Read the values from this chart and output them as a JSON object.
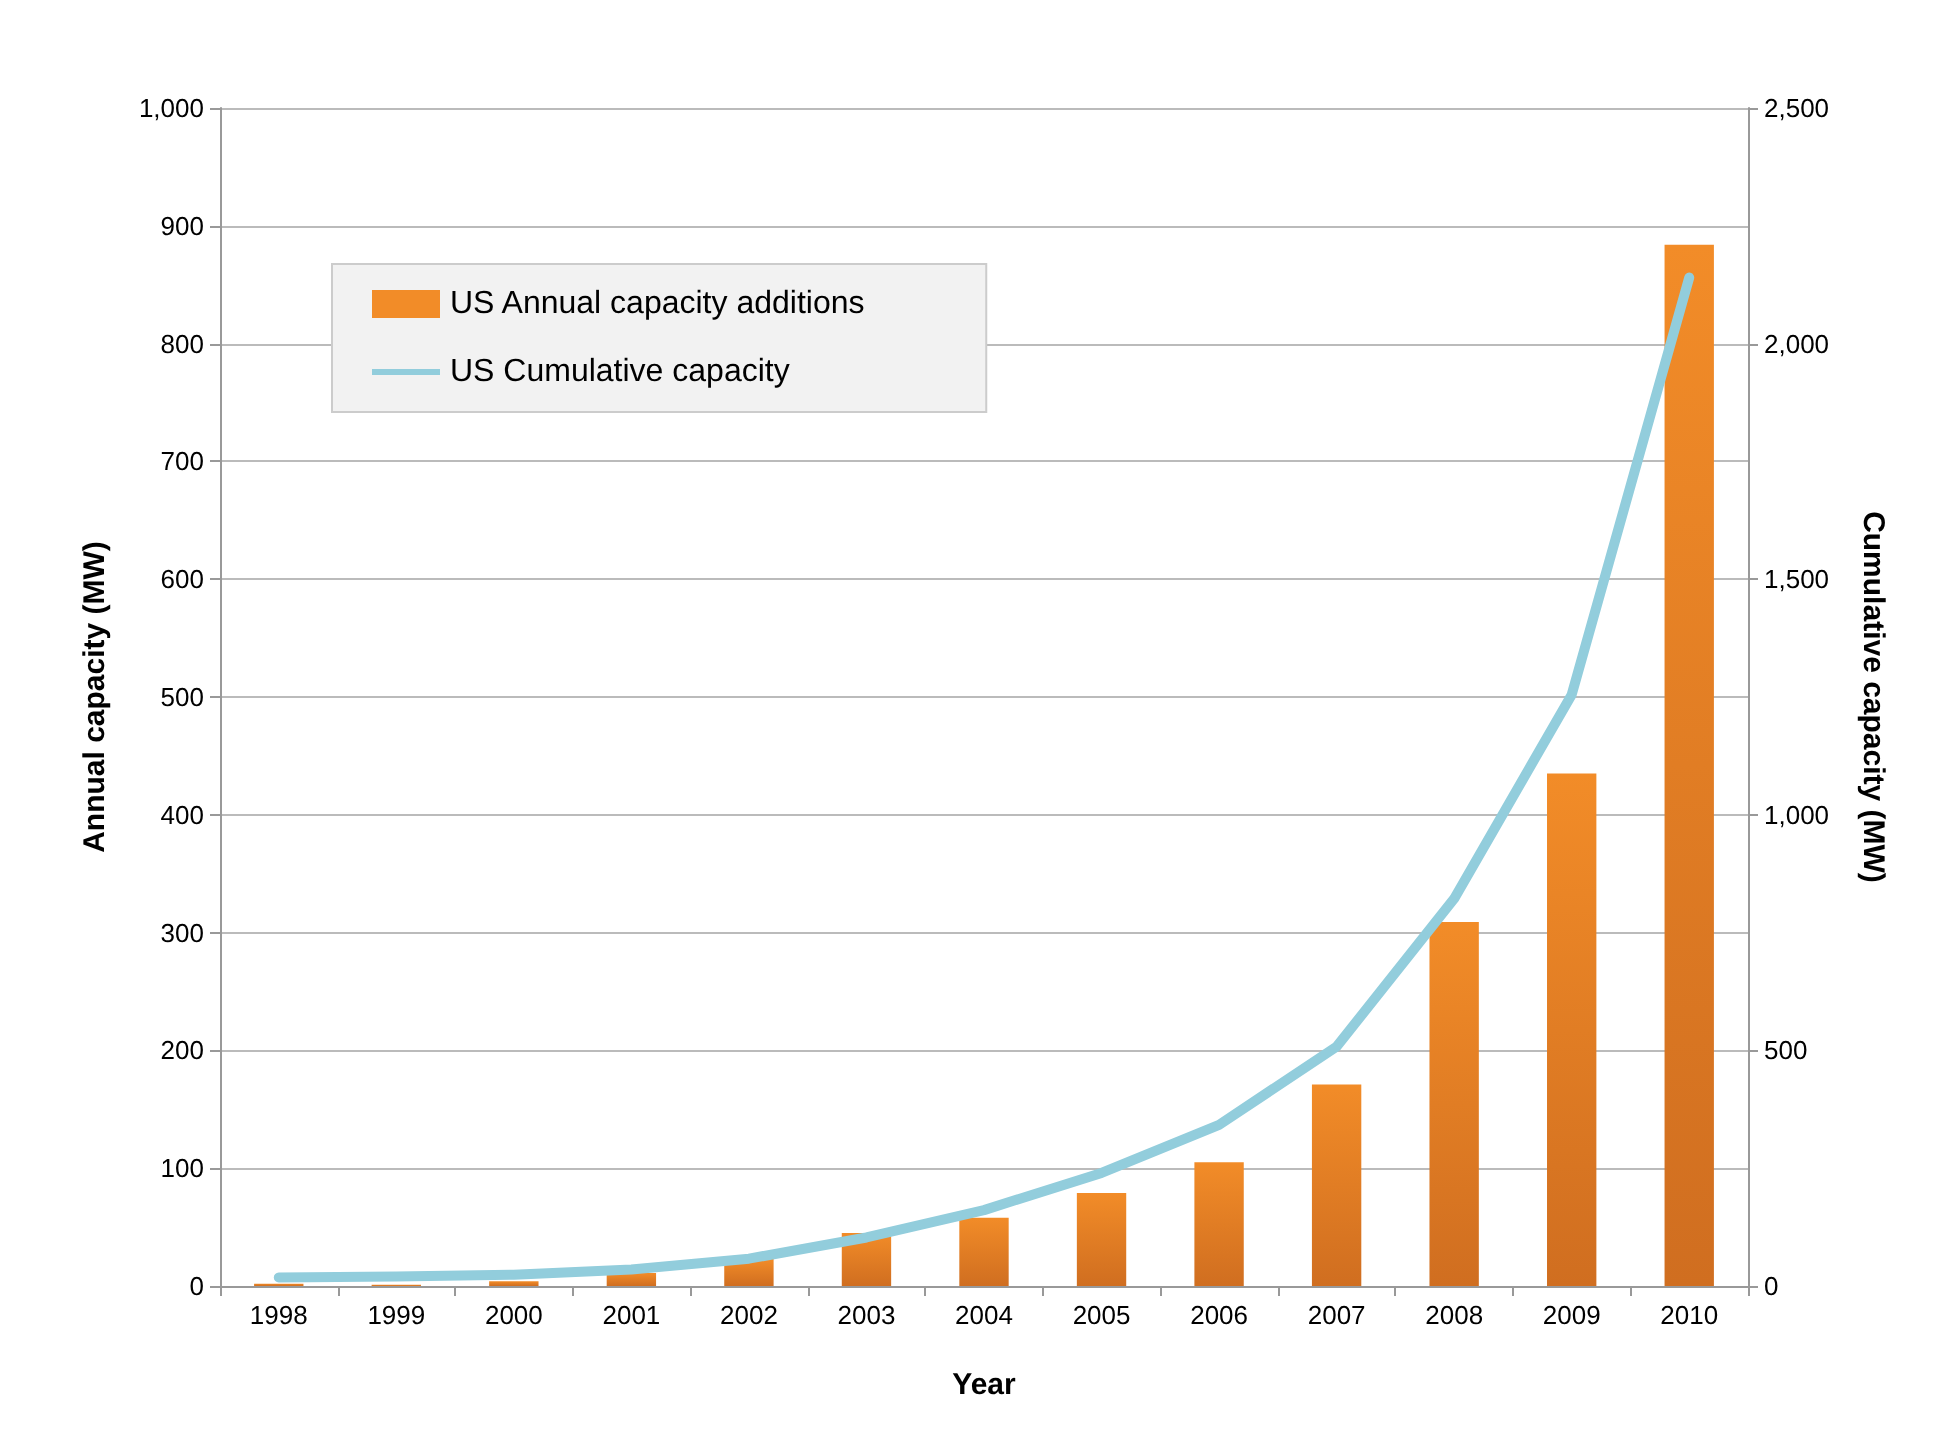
{
  "chart_data": {
    "type": "bar",
    "xlabel": "Year",
    "ylabel": "Annual capacity (MW)",
    "y2label": "Cumulative capacity (MW)",
    "categories": [
      "1998",
      "1999",
      "2000",
      "2001",
      "2002",
      "2003",
      "2004",
      "2005",
      "2006",
      "2007",
      "2008",
      "2009",
      "2010"
    ],
    "series": [
      {
        "name": "US Annual capacity additions",
        "color": "#f28c28",
        "values": [
          2,
          1,
          4,
          11,
          23,
          45,
          58,
          79,
          105,
          171,
          309,
          435,
          884
        ]
      },
      {
        "name": "US Cumulative capacity",
        "type": "line",
        "axis": "y2",
        "color": "#92cddc",
        "values": [
          18,
          20,
          24,
          35,
          58,
          103,
          161,
          240,
          342,
          508,
          822,
          1255,
          2140
        ]
      }
    ],
    "ylim": [
      0,
      1000
    ],
    "yticks": [
      {
        "value": 0,
        "label": "0"
      },
      {
        "value": 100,
        "label": "100"
      },
      {
        "value": 200,
        "label": "200"
      },
      {
        "value": 300,
        "label": "300"
      },
      {
        "value": 400,
        "label": "400"
      },
      {
        "value": 500,
        "label": "500"
      },
      {
        "value": 600,
        "label": "600"
      },
      {
        "value": 700,
        "label": "700"
      },
      {
        "value": 800,
        "label": "800"
      },
      {
        "value": 900,
        "label": "900"
      },
      {
        "value": 1000,
        "label": "1,000"
      }
    ],
    "y2lim": [
      0,
      2500
    ],
    "y2ticks": [
      {
        "value": 0,
        "label": "0"
      },
      {
        "value": 500,
        "label": "500"
      },
      {
        "value": 1000,
        "label": "1,000"
      },
      {
        "value": 1500,
        "label": "1,500"
      },
      {
        "value": 2000,
        "label": "2,000"
      },
      {
        "value": 2500,
        "label": "2,500"
      }
    ],
    "grid": "y",
    "legend": "top left",
    "marker": "none"
  }
}
